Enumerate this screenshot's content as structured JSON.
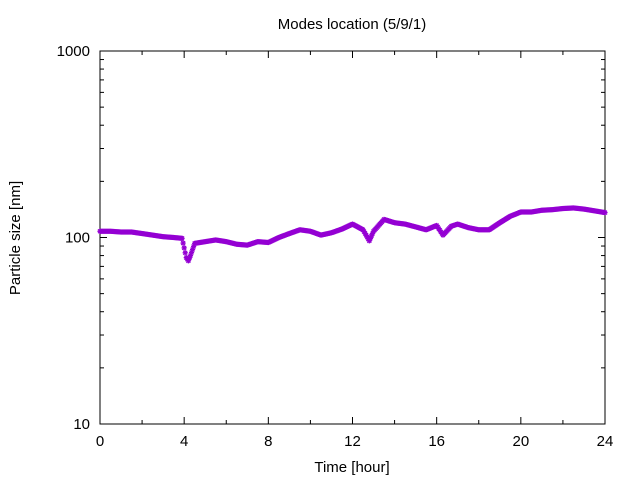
{
  "chart_data": {
    "type": "scatter",
    "title": "Modes location (5/9/1)",
    "xlabel": "Time [hour]",
    "ylabel": "Particle size [nm]",
    "xlim": [
      0,
      24
    ],
    "ylim": [
      10,
      1000
    ],
    "y_scale": "log",
    "grid": false,
    "legend": "none",
    "x_ticks": [
      0,
      4,
      8,
      12,
      16,
      20,
      24
    ],
    "x_tick_labels": [
      "0",
      "4",
      "8",
      "12",
      "16",
      "20",
      "24"
    ],
    "y_ticks": [
      10,
      100,
      1000
    ],
    "y_tick_labels": [
      "10",
      "100",
      "1000"
    ],
    "marker": "star",
    "color": "#9400d3",
    "series": [
      {
        "x": [
          0.0,
          0.5,
          1.0,
          1.5,
          2.0,
          2.5,
          3.0,
          3.5,
          3.9,
          4.0,
          4.1,
          4.2,
          4.3,
          4.5,
          5.0,
          5.5,
          6.0,
          6.5,
          7.0,
          7.5,
          8.0,
          8.5,
          9.0,
          9.5,
          10.0,
          10.5,
          11.0,
          11.5,
          12.0,
          12.5,
          12.8,
          13.0,
          13.5,
          14.0,
          14.5,
          15.0,
          15.5,
          16.0,
          16.3,
          16.7,
          17.0,
          17.5,
          18.0,
          18.5,
          19.0,
          19.5,
          20.0,
          20.5,
          21.0,
          21.5,
          22.0,
          22.5,
          23.0,
          23.5,
          24.0
        ],
        "y": [
          108,
          108,
          107,
          107,
          105,
          103,
          101,
          100,
          99,
          88,
          78,
          75,
          80,
          93,
          95,
          97,
          95,
          92,
          91,
          95,
          94,
          100,
          105,
          110,
          108,
          103,
          106,
          111,
          118,
          110,
          96,
          108,
          125,
          120,
          118,
          114,
          110,
          116,
          103,
          115,
          118,
          113,
          110,
          110,
          120,
          130,
          137,
          137,
          140,
          141,
          143,
          144,
          142,
          139,
          136
        ]
      }
    ]
  }
}
